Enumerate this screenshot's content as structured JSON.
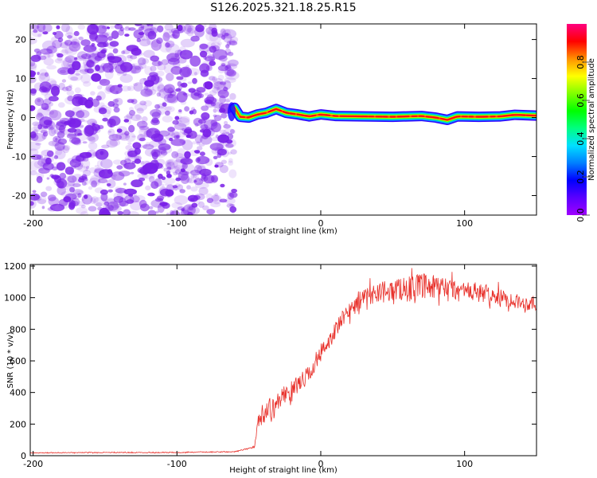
{
  "figure_title": "S126.2025.321.18.25.R15",
  "colors": {
    "snr_line": "#e8302a",
    "speckle": "#7a20e8",
    "background": "#ffffff",
    "axis": "#000000"
  },
  "chart_data": [
    {
      "type": "heatmap",
      "name": "spectrogram",
      "title": "S126.2025.321.18.25.R15",
      "xlabel": "Height of straight line (km)",
      "ylabel": "Frequency (Hz)",
      "xlim": [
        -202,
        150
      ],
      "ylim": [
        -25,
        24
      ],
      "xticks": [
        -200,
        -100,
        0,
        100
      ],
      "yticks": [
        -20,
        -10,
        0,
        10,
        20
      ],
      "xticklabels": [
        "-200",
        "-100",
        "0",
        "100"
      ],
      "yticklabels": [
        "-20",
        "-10",
        "0",
        "10",
        "20"
      ],
      "noise_region_x": [
        -202,
        -60
      ],
      "carrier_start_x": -62,
      "carrier_frequency_hz": 0.5,
      "carrier_points": [
        {
          "x": -60,
          "y": 2.5
        },
        {
          "x": -56,
          "y": 0.2
        },
        {
          "x": -50,
          "y": 0.0
        },
        {
          "x": -44,
          "y": 0.8
        },
        {
          "x": -38,
          "y": 1.2
        },
        {
          "x": -31,
          "y": 2.2
        },
        {
          "x": -24,
          "y": 1.2
        },
        {
          "x": -16,
          "y": 0.8
        },
        {
          "x": -8,
          "y": 0.3
        },
        {
          "x": 0,
          "y": 0.8
        },
        {
          "x": 10,
          "y": 0.4
        },
        {
          "x": 30,
          "y": 0.3
        },
        {
          "x": 50,
          "y": 0.2
        },
        {
          "x": 70,
          "y": 0.4
        },
        {
          "x": 80,
          "y": 0.0
        },
        {
          "x": 88,
          "y": -0.6
        },
        {
          "x": 95,
          "y": 0.3
        },
        {
          "x": 110,
          "y": 0.2
        },
        {
          "x": 125,
          "y": 0.3
        },
        {
          "x": 135,
          "y": 0.7
        },
        {
          "x": 150,
          "y": 0.5
        }
      ]
    },
    {
      "type": "colorbar",
      "name": "amplitude-colorbar",
      "label": "Normalized spectral amplitude",
      "range": [
        0,
        1
      ],
      "ticks": [
        0.0,
        0.2,
        0.4,
        0.6,
        0.8
      ],
      "ticklabels": [
        "0.0",
        "0.2",
        "0.4",
        "0.6",
        "0.8"
      ],
      "colors": [
        "#a000ff",
        "#5a00ff",
        "#0000ff",
        "#0080ff",
        "#00e0ff",
        "#00ff80",
        "#00ff00",
        "#80ff00",
        "#ffff00",
        "#ff9000",
        "#ff0000",
        "#ff0080"
      ]
    },
    {
      "type": "line",
      "name": "snr",
      "title": "",
      "xlabel": "Height of straight line (km)",
      "ylabel": "SNR (10 * v/v)",
      "xlim": [
        -202,
        150
      ],
      "ylim": [
        0,
        1210
      ],
      "xticks": [
        -200,
        -100,
        0,
        100
      ],
      "yticks": [
        0,
        200,
        400,
        600,
        800,
        1000,
        1200
      ],
      "xticklabels": [
        "-200",
        "-100",
        "0",
        "100"
      ],
      "yticklabels": [
        "0",
        "200",
        "400",
        "600",
        "800",
        "1000",
        "1200"
      ],
      "series": [
        {
          "name": "SNR",
          "x": [
            -202,
            -160,
            -100,
            -60,
            -46,
            -44,
            -42,
            -40,
            -38,
            -36,
            -34,
            -32,
            -30,
            -28,
            -25,
            -20,
            -15,
            -10,
            -5,
            0,
            5,
            10,
            15,
            20,
            25,
            30,
            35,
            40,
            45,
            50,
            60,
            70,
            80,
            90,
            100,
            110,
            120,
            130,
            140,
            150
          ],
          "y": [
            18,
            20,
            20,
            25,
            55,
            200,
            250,
            240,
            280,
            330,
            260,
            320,
            340,
            360,
            390,
            420,
            460,
            500,
            560,
            640,
            720,
            790,
            860,
            920,
            970,
            1000,
            1020,
            1040,
            1040,
            1050,
            1060,
            1070,
            1060,
            1050,
            1040,
            1030,
            1010,
            990,
            970,
            950
          ],
          "noise_amplitude": [
            4,
            4,
            5,
            5,
            10,
            60,
            120,
            80,
            90,
            120,
            110,
            110,
            110,
            100,
            100,
            100,
            100,
            100,
            100,
            100,
            100,
            100,
            100,
            100,
            100,
            100,
            110,
            120,
            120,
            130,
            140,
            150,
            150,
            140,
            120,
            110,
            100,
            90,
            80,
            70
          ]
        }
      ]
    }
  ]
}
